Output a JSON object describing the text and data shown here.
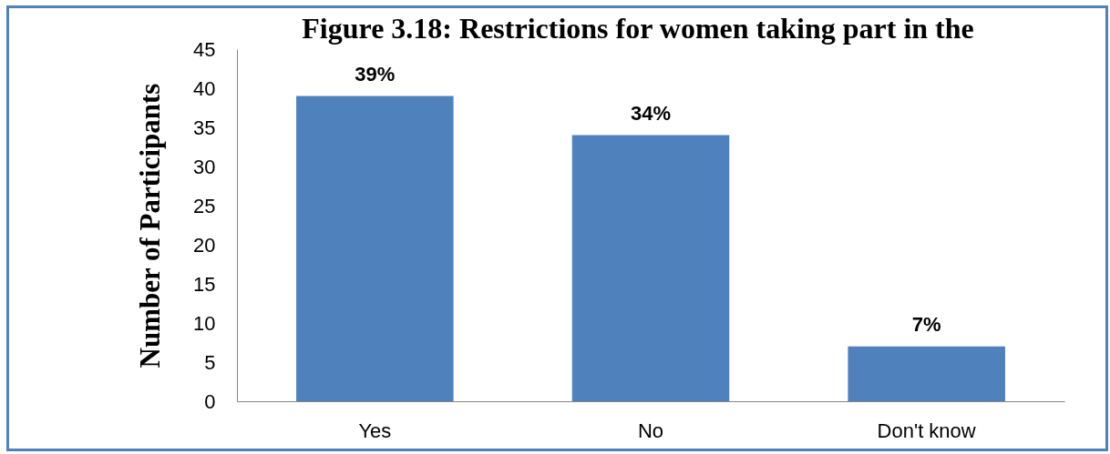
{
  "chart_data": {
    "type": "bar",
    "title": "Figure 3.18: Restrictions for women taking part in the",
    "ylabel": "Number of Participants",
    "categories": [
      "Yes",
      "No",
      "Don't know"
    ],
    "values": [
      39,
      34,
      7
    ],
    "value_labels": [
      "39%",
      "34%",
      "7%"
    ],
    "color": "#4f81bd",
    "ylim": [
      0,
      45
    ],
    "yticks": [
      0,
      5,
      10,
      15,
      20,
      25,
      30,
      35,
      40,
      45
    ]
  }
}
